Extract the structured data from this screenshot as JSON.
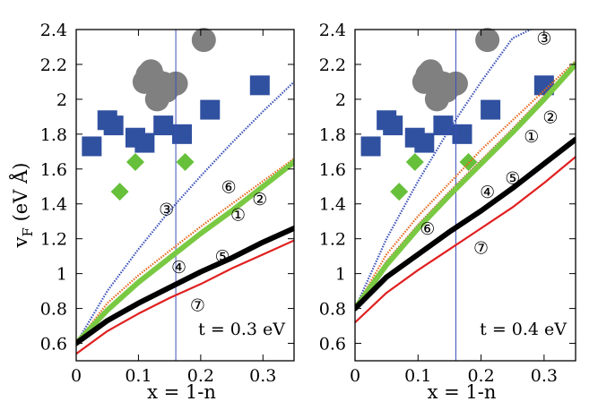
{
  "figure": {
    "ylabel_main": "v",
    "ylabel_sub": "F",
    "ylabel_units": " (eV Å)"
  },
  "chart_data": [
    {
      "type": "line",
      "panel": "left",
      "annotation": "t = 0.3 eV",
      "xlabel": "x = 1-n",
      "ylabel": "vF (eV Å)",
      "xlim": [
        0,
        0.35
      ],
      "ylim": [
        0.5,
        2.4
      ],
      "xticks": [
        "0",
        "0.1",
        "0.2",
        "0.3"
      ],
      "xtick_values": [
        0,
        0.1,
        0.2,
        0.3
      ],
      "yticks": [
        "0.6",
        "0.8",
        "1",
        "1.2",
        "1.4",
        "1.6",
        "1.8",
        "2",
        "2.2",
        "2.4"
      ],
      "ytick_values": [
        0.6,
        0.8,
        1.0,
        1.2,
        1.4,
        1.6,
        1.8,
        2.0,
        2.2,
        2.4
      ],
      "vline_x": 0.16,
      "series": [
        {
          "curve": "③",
          "color": "#3a50b8",
          "style": "dotted",
          "x": [
            0,
            0.05,
            0.1,
            0.15,
            0.2,
            0.25,
            0.3,
            0.35
          ],
          "y": [
            0.6,
            0.9,
            1.14,
            1.36,
            1.56,
            1.75,
            1.93,
            2.1
          ]
        },
        {
          "curve": "⑥",
          "color": "#e8661a",
          "style": "dotted",
          "x": [
            0,
            0.05,
            0.1,
            0.15,
            0.2,
            0.25,
            0.3,
            0.35
          ],
          "y": [
            0.6,
            0.83,
            0.99,
            1.13,
            1.27,
            1.4,
            1.53,
            1.66
          ]
        },
        {
          "curve": "②",
          "color": "#e03c3c",
          "style": "dotted",
          "x": [
            0,
            0.05,
            0.1,
            0.15,
            0.2,
            0.25,
            0.3,
            0.35
          ],
          "y": [
            0.6,
            0.8,
            0.96,
            1.1,
            1.24,
            1.37,
            1.51,
            1.65
          ]
        },
        {
          "curve": "①",
          "color": "#7ac943",
          "style": "thick",
          "x": [
            0,
            0.05,
            0.1,
            0.15,
            0.2,
            0.25,
            0.3,
            0.35
          ],
          "y": [
            0.6,
            0.79,
            0.95,
            1.09,
            1.23,
            1.36,
            1.5,
            1.64
          ]
        },
        {
          "curve": "⑤",
          "color": "#cc44cc",
          "style": "solid",
          "x": [
            0,
            0.05,
            0.1,
            0.15,
            0.2,
            0.25,
            0.3,
            0.35
          ],
          "y": [
            0.6,
            0.74,
            0.84,
            0.93,
            1.02,
            1.1,
            1.19,
            1.27
          ]
        },
        {
          "curve": "④",
          "color": "#000000",
          "style": "thick",
          "x": [
            0,
            0.05,
            0.1,
            0.15,
            0.2,
            0.25,
            0.3,
            0.35
          ],
          "y": [
            0.6,
            0.73,
            0.83,
            0.92,
            1.01,
            1.09,
            1.18,
            1.26
          ]
        },
        {
          "curve": "⑦",
          "color": "#e02020",
          "style": "solid",
          "x": [
            0,
            0.05,
            0.1,
            0.15,
            0.2,
            0.25,
            0.3,
            0.35
          ],
          "y": [
            0.54,
            0.67,
            0.77,
            0.86,
            0.94,
            1.03,
            1.11,
            1.19
          ]
        }
      ],
      "scatter": [
        {
          "marker": "circle",
          "color": "#808080",
          "x": [
            0.205,
            0.115,
            0.12,
            0.125,
            0.14,
            0.11,
            0.145,
            0.16,
            0.13
          ],
          "y": [
            2.34,
            2.14,
            2.16,
            2.12,
            2.09,
            2.1,
            2.05,
            2.09,
            2.0
          ]
        },
        {
          "marker": "square",
          "color": "#3050a0",
          "x": [
            0.025,
            0.05,
            0.06,
            0.095,
            0.11,
            0.14,
            0.17,
            0.215,
            0.295
          ],
          "y": [
            1.73,
            1.88,
            1.85,
            1.78,
            1.75,
            1.85,
            1.8,
            1.94,
            2.08
          ]
        },
        {
          "marker": "diamond",
          "color": "#66c03a",
          "x": [
            0.07,
            0.095,
            0.175
          ],
          "y": [
            1.47,
            1.64,
            1.64
          ]
        }
      ],
      "labels": [
        {
          "text": "⑥",
          "x": 0.245,
          "y": 1.5
        },
        {
          "text": "②",
          "x": 0.295,
          "y": 1.43
        },
        {
          "text": "①",
          "x": 0.26,
          "y": 1.34
        },
        {
          "text": "③",
          "x": 0.145,
          "y": 1.37
        },
        {
          "text": "⑤",
          "x": 0.235,
          "y": 1.1
        },
        {
          "text": "④",
          "x": 0.165,
          "y": 1.04
        },
        {
          "text": "⑦",
          "x": 0.195,
          "y": 0.82
        }
      ]
    },
    {
      "type": "line",
      "panel": "right",
      "annotation": "t = 0.4 eV",
      "xlabel": "x = 1-n",
      "ylabel": "vF (eV Å)",
      "xlim": [
        0,
        0.35
      ],
      "ylim": [
        0.5,
        2.4
      ],
      "xticks": [
        "0",
        "0.1",
        "0.2",
        "0.3"
      ],
      "xtick_values": [
        0,
        0.1,
        0.2,
        0.3
      ],
      "yticks": [
        "0.6",
        "0.8",
        "1",
        "1.2",
        "1.4",
        "1.6",
        "1.8",
        "2",
        "2.2",
        "2.4"
      ],
      "ytick_values": [
        0.6,
        0.8,
        1.0,
        1.2,
        1.4,
        1.6,
        1.8,
        2.0,
        2.2,
        2.4
      ],
      "vline_x": 0.16,
      "series": [
        {
          "curve": "③",
          "color": "#3a50b8",
          "style": "dotted",
          "x": [
            0,
            0.05,
            0.1,
            0.15,
            0.2,
            0.25,
            0.29
          ],
          "y": [
            0.8,
            1.2,
            1.53,
            1.83,
            2.1,
            2.35,
            2.42
          ]
        },
        {
          "curve": "⑥",
          "color": "#e8661a",
          "style": "dotted",
          "x": [
            0,
            0.05,
            0.1,
            0.15,
            0.2,
            0.25,
            0.3,
            0.35
          ],
          "y": [
            0.8,
            1.11,
            1.33,
            1.52,
            1.71,
            1.88,
            2.05,
            2.22
          ]
        },
        {
          "curve": "②",
          "color": "#e03c3c",
          "style": "dotted",
          "x": [
            0,
            0.05,
            0.1,
            0.15,
            0.2,
            0.25,
            0.3,
            0.35
          ],
          "y": [
            0.8,
            1.07,
            1.28,
            1.47,
            1.65,
            1.83,
            2.02,
            2.21
          ]
        },
        {
          "curve": "①",
          "color": "#7ac943",
          "style": "thick",
          "x": [
            0,
            0.05,
            0.1,
            0.15,
            0.2,
            0.25,
            0.3,
            0.35
          ],
          "y": [
            0.8,
            1.05,
            1.26,
            1.45,
            1.63,
            1.81,
            2.0,
            2.2
          ]
        },
        {
          "curve": "⑤",
          "color": "#cc44cc",
          "style": "solid",
          "x": [
            0,
            0.05,
            0.1,
            0.15,
            0.2,
            0.25,
            0.3,
            0.35
          ],
          "y": [
            0.8,
            0.99,
            1.12,
            1.25,
            1.37,
            1.5,
            1.64,
            1.78
          ]
        },
        {
          "curve": "④",
          "color": "#000000",
          "style": "thick",
          "x": [
            0,
            0.05,
            0.1,
            0.15,
            0.2,
            0.25,
            0.3,
            0.35
          ],
          "y": [
            0.8,
            0.98,
            1.11,
            1.24,
            1.36,
            1.49,
            1.63,
            1.77
          ]
        },
        {
          "curve": "⑦",
          "color": "#e02020",
          "style": "solid",
          "x": [
            0,
            0.05,
            0.1,
            0.15,
            0.2,
            0.25,
            0.3,
            0.35
          ],
          "y": [
            0.72,
            0.89,
            1.02,
            1.14,
            1.26,
            1.38,
            1.52,
            1.67
          ]
        }
      ],
      "scatter": [
        {
          "marker": "circle",
          "color": "#808080",
          "x": [
            0.21,
            0.115,
            0.12,
            0.125,
            0.14,
            0.11,
            0.145,
            0.16,
            0.13
          ],
          "y": [
            2.34,
            2.14,
            2.16,
            2.12,
            2.09,
            2.1,
            2.05,
            2.09,
            2.0
          ]
        },
        {
          "marker": "square",
          "color": "#3050a0",
          "x": [
            0.025,
            0.05,
            0.06,
            0.095,
            0.11,
            0.14,
            0.17,
            0.215,
            0.3
          ],
          "y": [
            1.73,
            1.88,
            1.85,
            1.78,
            1.75,
            1.85,
            1.8,
            1.94,
            2.08
          ]
        },
        {
          "marker": "diamond",
          "color": "#66c03a",
          "x": [
            0.07,
            0.095,
            0.18
          ],
          "y": [
            1.47,
            1.64,
            1.64
          ]
        }
      ],
      "labels": [
        {
          "text": "③",
          "x": 0.3,
          "y": 2.35
        },
        {
          "text": "②",
          "x": 0.31,
          "y": 1.9
        },
        {
          "text": "①",
          "x": 0.28,
          "y": 1.79
        },
        {
          "text": "⑤",
          "x": 0.25,
          "y": 1.55
        },
        {
          "text": "④",
          "x": 0.21,
          "y": 1.47
        },
        {
          "text": "⑥",
          "x": 0.115,
          "y": 1.26
        },
        {
          "text": "⑦",
          "x": 0.2,
          "y": 1.15
        }
      ]
    }
  ]
}
